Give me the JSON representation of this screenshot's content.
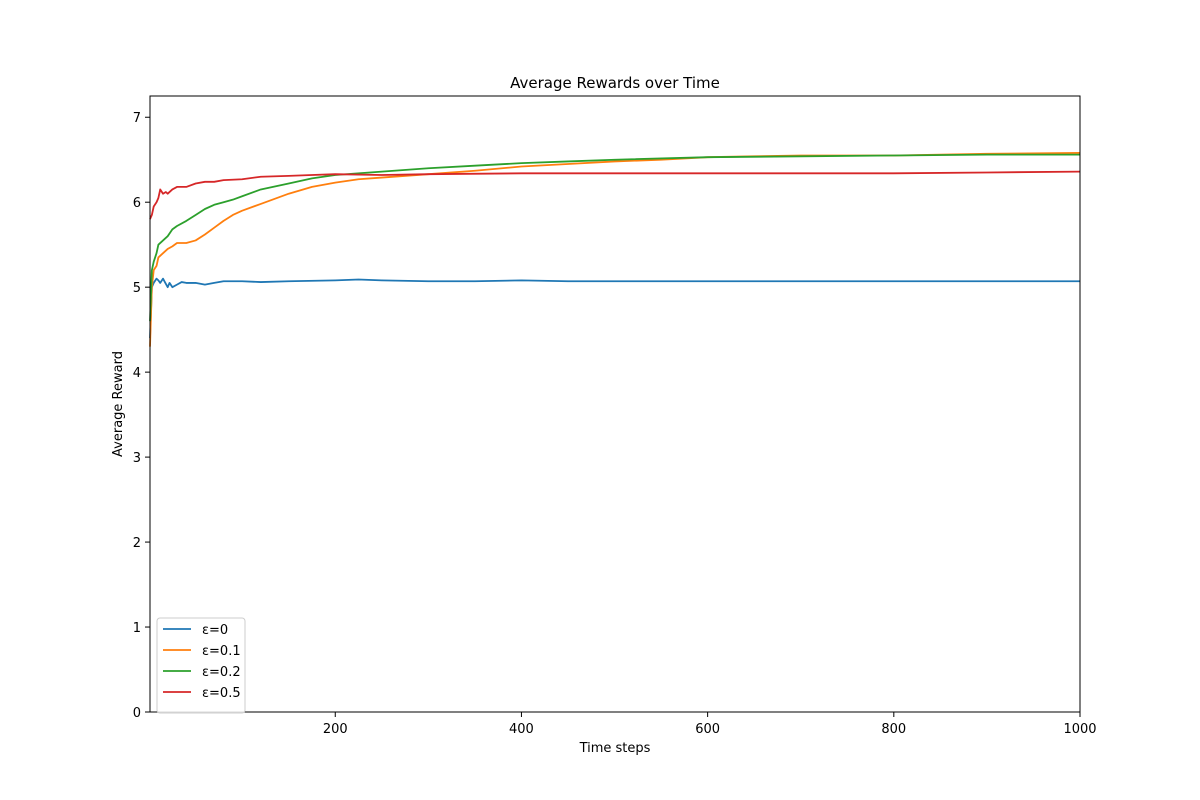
{
  "chart_data": {
    "type": "line",
    "title": "Average Rewards over Time",
    "xlabel": "Time steps",
    "ylabel": "Average Reward",
    "xlim": [
      1,
      1000
    ],
    "ylim": [
      0,
      7.25
    ],
    "xticks": [
      200,
      400,
      600,
      800,
      1000
    ],
    "yticks": [
      0,
      1,
      2,
      3,
      4,
      5,
      6,
      7
    ],
    "grid": false,
    "legend_position": "lower-left",
    "series": [
      {
        "name": "ε=0",
        "color": "#1f77b4",
        "points": [
          [
            1,
            4.4
          ],
          [
            3,
            5.0
          ],
          [
            5,
            5.05
          ],
          [
            8,
            5.1
          ],
          [
            10,
            5.08
          ],
          [
            12,
            5.05
          ],
          [
            15,
            5.1
          ],
          [
            18,
            5.04
          ],
          [
            20,
            5.0
          ],
          [
            22,
            5.05
          ],
          [
            25,
            5.0
          ],
          [
            30,
            5.03
          ],
          [
            35,
            5.06
          ],
          [
            40,
            5.05
          ],
          [
            50,
            5.05
          ],
          [
            60,
            5.03
          ],
          [
            70,
            5.05
          ],
          [
            80,
            5.07
          ],
          [
            90,
            5.07
          ],
          [
            100,
            5.07
          ],
          [
            120,
            5.06
          ],
          [
            150,
            5.07
          ],
          [
            200,
            5.08
          ],
          [
            225,
            5.09
          ],
          [
            250,
            5.08
          ],
          [
            300,
            5.07
          ],
          [
            350,
            5.07
          ],
          [
            400,
            5.08
          ],
          [
            450,
            5.07
          ],
          [
            500,
            5.07
          ],
          [
            600,
            5.07
          ],
          [
            700,
            5.07
          ],
          [
            800,
            5.07
          ],
          [
            900,
            5.07
          ],
          [
            1000,
            5.07
          ]
        ]
      },
      {
        "name": "ε=0.1",
        "color": "#ff7f0e",
        "points": [
          [
            1,
            4.3
          ],
          [
            3,
            5.0
          ],
          [
            5,
            5.2
          ],
          [
            8,
            5.25
          ],
          [
            10,
            5.35
          ],
          [
            15,
            5.4
          ],
          [
            20,
            5.45
          ],
          [
            25,
            5.48
          ],
          [
            30,
            5.52
          ],
          [
            40,
            5.52
          ],
          [
            50,
            5.55
          ],
          [
            60,
            5.62
          ],
          [
            70,
            5.7
          ],
          [
            80,
            5.78
          ],
          [
            90,
            5.85
          ],
          [
            100,
            5.9
          ],
          [
            120,
            5.98
          ],
          [
            150,
            6.1
          ],
          [
            175,
            6.18
          ],
          [
            200,
            6.23
          ],
          [
            225,
            6.27
          ],
          [
            250,
            6.29
          ],
          [
            300,
            6.33
          ],
          [
            350,
            6.37
          ],
          [
            400,
            6.42
          ],
          [
            450,
            6.45
          ],
          [
            500,
            6.48
          ],
          [
            550,
            6.5
          ],
          [
            600,
            6.53
          ],
          [
            650,
            6.54
          ],
          [
            700,
            6.55
          ],
          [
            800,
            6.55
          ],
          [
            900,
            6.57
          ],
          [
            1000,
            6.58
          ]
        ]
      },
      {
        "name": "ε=0.2",
        "color": "#2ca02c",
        "points": [
          [
            1,
            4.6
          ],
          [
            3,
            5.2
          ],
          [
            5,
            5.3
          ],
          [
            8,
            5.4
          ],
          [
            10,
            5.5
          ],
          [
            15,
            5.55
          ],
          [
            20,
            5.6
          ],
          [
            25,
            5.68
          ],
          [
            30,
            5.72
          ],
          [
            40,
            5.78
          ],
          [
            50,
            5.85
          ],
          [
            60,
            5.92
          ],
          [
            70,
            5.97
          ],
          [
            80,
            6.0
          ],
          [
            90,
            6.03
          ],
          [
            100,
            6.07
          ],
          [
            120,
            6.15
          ],
          [
            150,
            6.22
          ],
          [
            175,
            6.28
          ],
          [
            200,
            6.32
          ],
          [
            250,
            6.36
          ],
          [
            300,
            6.4
          ],
          [
            350,
            6.43
          ],
          [
            400,
            6.46
          ],
          [
            450,
            6.48
          ],
          [
            500,
            6.5
          ],
          [
            600,
            6.53
          ],
          [
            700,
            6.54
          ],
          [
            800,
            6.55
          ],
          [
            900,
            6.56
          ],
          [
            1000,
            6.56
          ]
        ]
      },
      {
        "name": "ε=0.5",
        "color": "#d62728",
        "points": [
          [
            1,
            5.8
          ],
          [
            3,
            5.85
          ],
          [
            5,
            5.95
          ],
          [
            8,
            6.0
          ],
          [
            10,
            6.05
          ],
          [
            12,
            6.15
          ],
          [
            15,
            6.1
          ],
          [
            18,
            6.12
          ],
          [
            20,
            6.1
          ],
          [
            25,
            6.15
          ],
          [
            30,
            6.18
          ],
          [
            40,
            6.18
          ],
          [
            50,
            6.22
          ],
          [
            60,
            6.24
          ],
          [
            70,
            6.24
          ],
          [
            80,
            6.26
          ],
          [
            100,
            6.27
          ],
          [
            120,
            6.3
          ],
          [
            150,
            6.31
          ],
          [
            175,
            6.32
          ],
          [
            200,
            6.33
          ],
          [
            250,
            6.32
          ],
          [
            300,
            6.33
          ],
          [
            400,
            6.34
          ],
          [
            500,
            6.34
          ],
          [
            600,
            6.34
          ],
          [
            700,
            6.34
          ],
          [
            800,
            6.34
          ],
          [
            900,
            6.35
          ],
          [
            1000,
            6.36
          ]
        ]
      }
    ]
  }
}
